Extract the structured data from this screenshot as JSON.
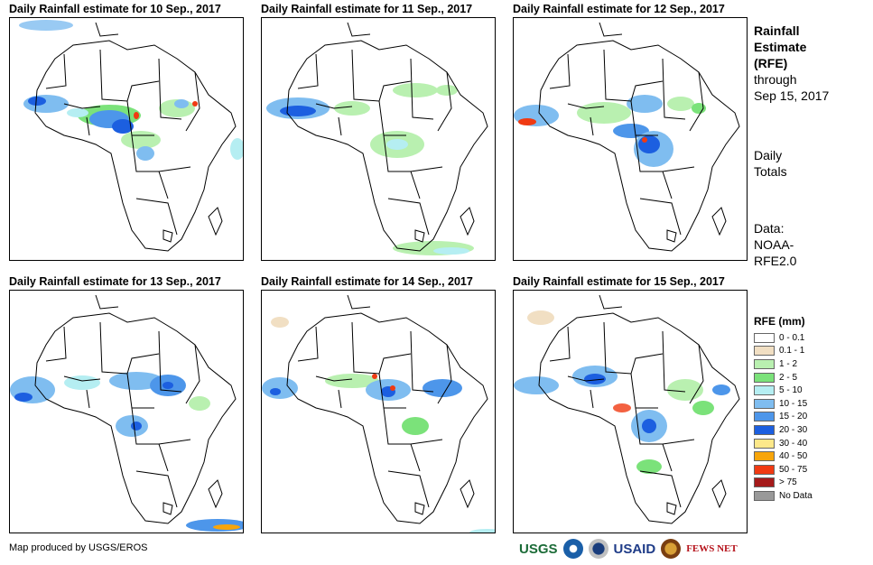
{
  "panels": [
    {
      "title": "Daily Rainfall estimate for 10 Sep., 2017"
    },
    {
      "title": "Daily Rainfall estimate for 11 Sep., 2017"
    },
    {
      "title": "Daily Rainfall estimate for 12 Sep., 2017"
    },
    {
      "title": "Daily Rainfall estimate for 13 Sep., 2017"
    },
    {
      "title": "Daily Rainfall estimate for 14 Sep., 2017"
    },
    {
      "title": "Daily Rainfall estimate for 15 Sep., 2017"
    }
  ],
  "side": {
    "heading_1": "Rainfall",
    "heading_2": "Estimate",
    "heading_3": "(RFE)",
    "through_1": "through",
    "through_2": "Sep 15, 2017",
    "daily_1": "Daily",
    "daily_2": "Totals",
    "data_1": "Data:",
    "data_2": "NOAA-",
    "data_3": "RFE2.0"
  },
  "legend": {
    "title": "RFE (mm)",
    "items": [
      {
        "label": "0 - 0.1",
        "color": "#ffffff"
      },
      {
        "label": "0.1 - 1",
        "color": "#f1dfc3"
      },
      {
        "label": "1 - 2",
        "color": "#b9f0b0"
      },
      {
        "label": "2 - 5",
        "color": "#7be27a"
      },
      {
        "label": "5 - 10",
        "color": "#b5eef2"
      },
      {
        "label": "10 - 15",
        "color": "#7fbdf0"
      },
      {
        "label": "15 - 20",
        "color": "#4d96ea"
      },
      {
        "label": "20 - 30",
        "color": "#1c5fe0"
      },
      {
        "label": "30 - 40",
        "color": "#fde88a"
      },
      {
        "label": "40 - 50",
        "color": "#f7a50a"
      },
      {
        "label": "50 - 75",
        "color": "#f03a12"
      },
      {
        "label": "> 75",
        "color": "#a51a1a"
      },
      {
        "label": "No Data",
        "color": "#999999"
      }
    ]
  },
  "credit": "Map produced by USGS/EROS",
  "logos": {
    "usgs": "USGS",
    "usaid": "USAID",
    "fews": "FEWS NET"
  }
}
